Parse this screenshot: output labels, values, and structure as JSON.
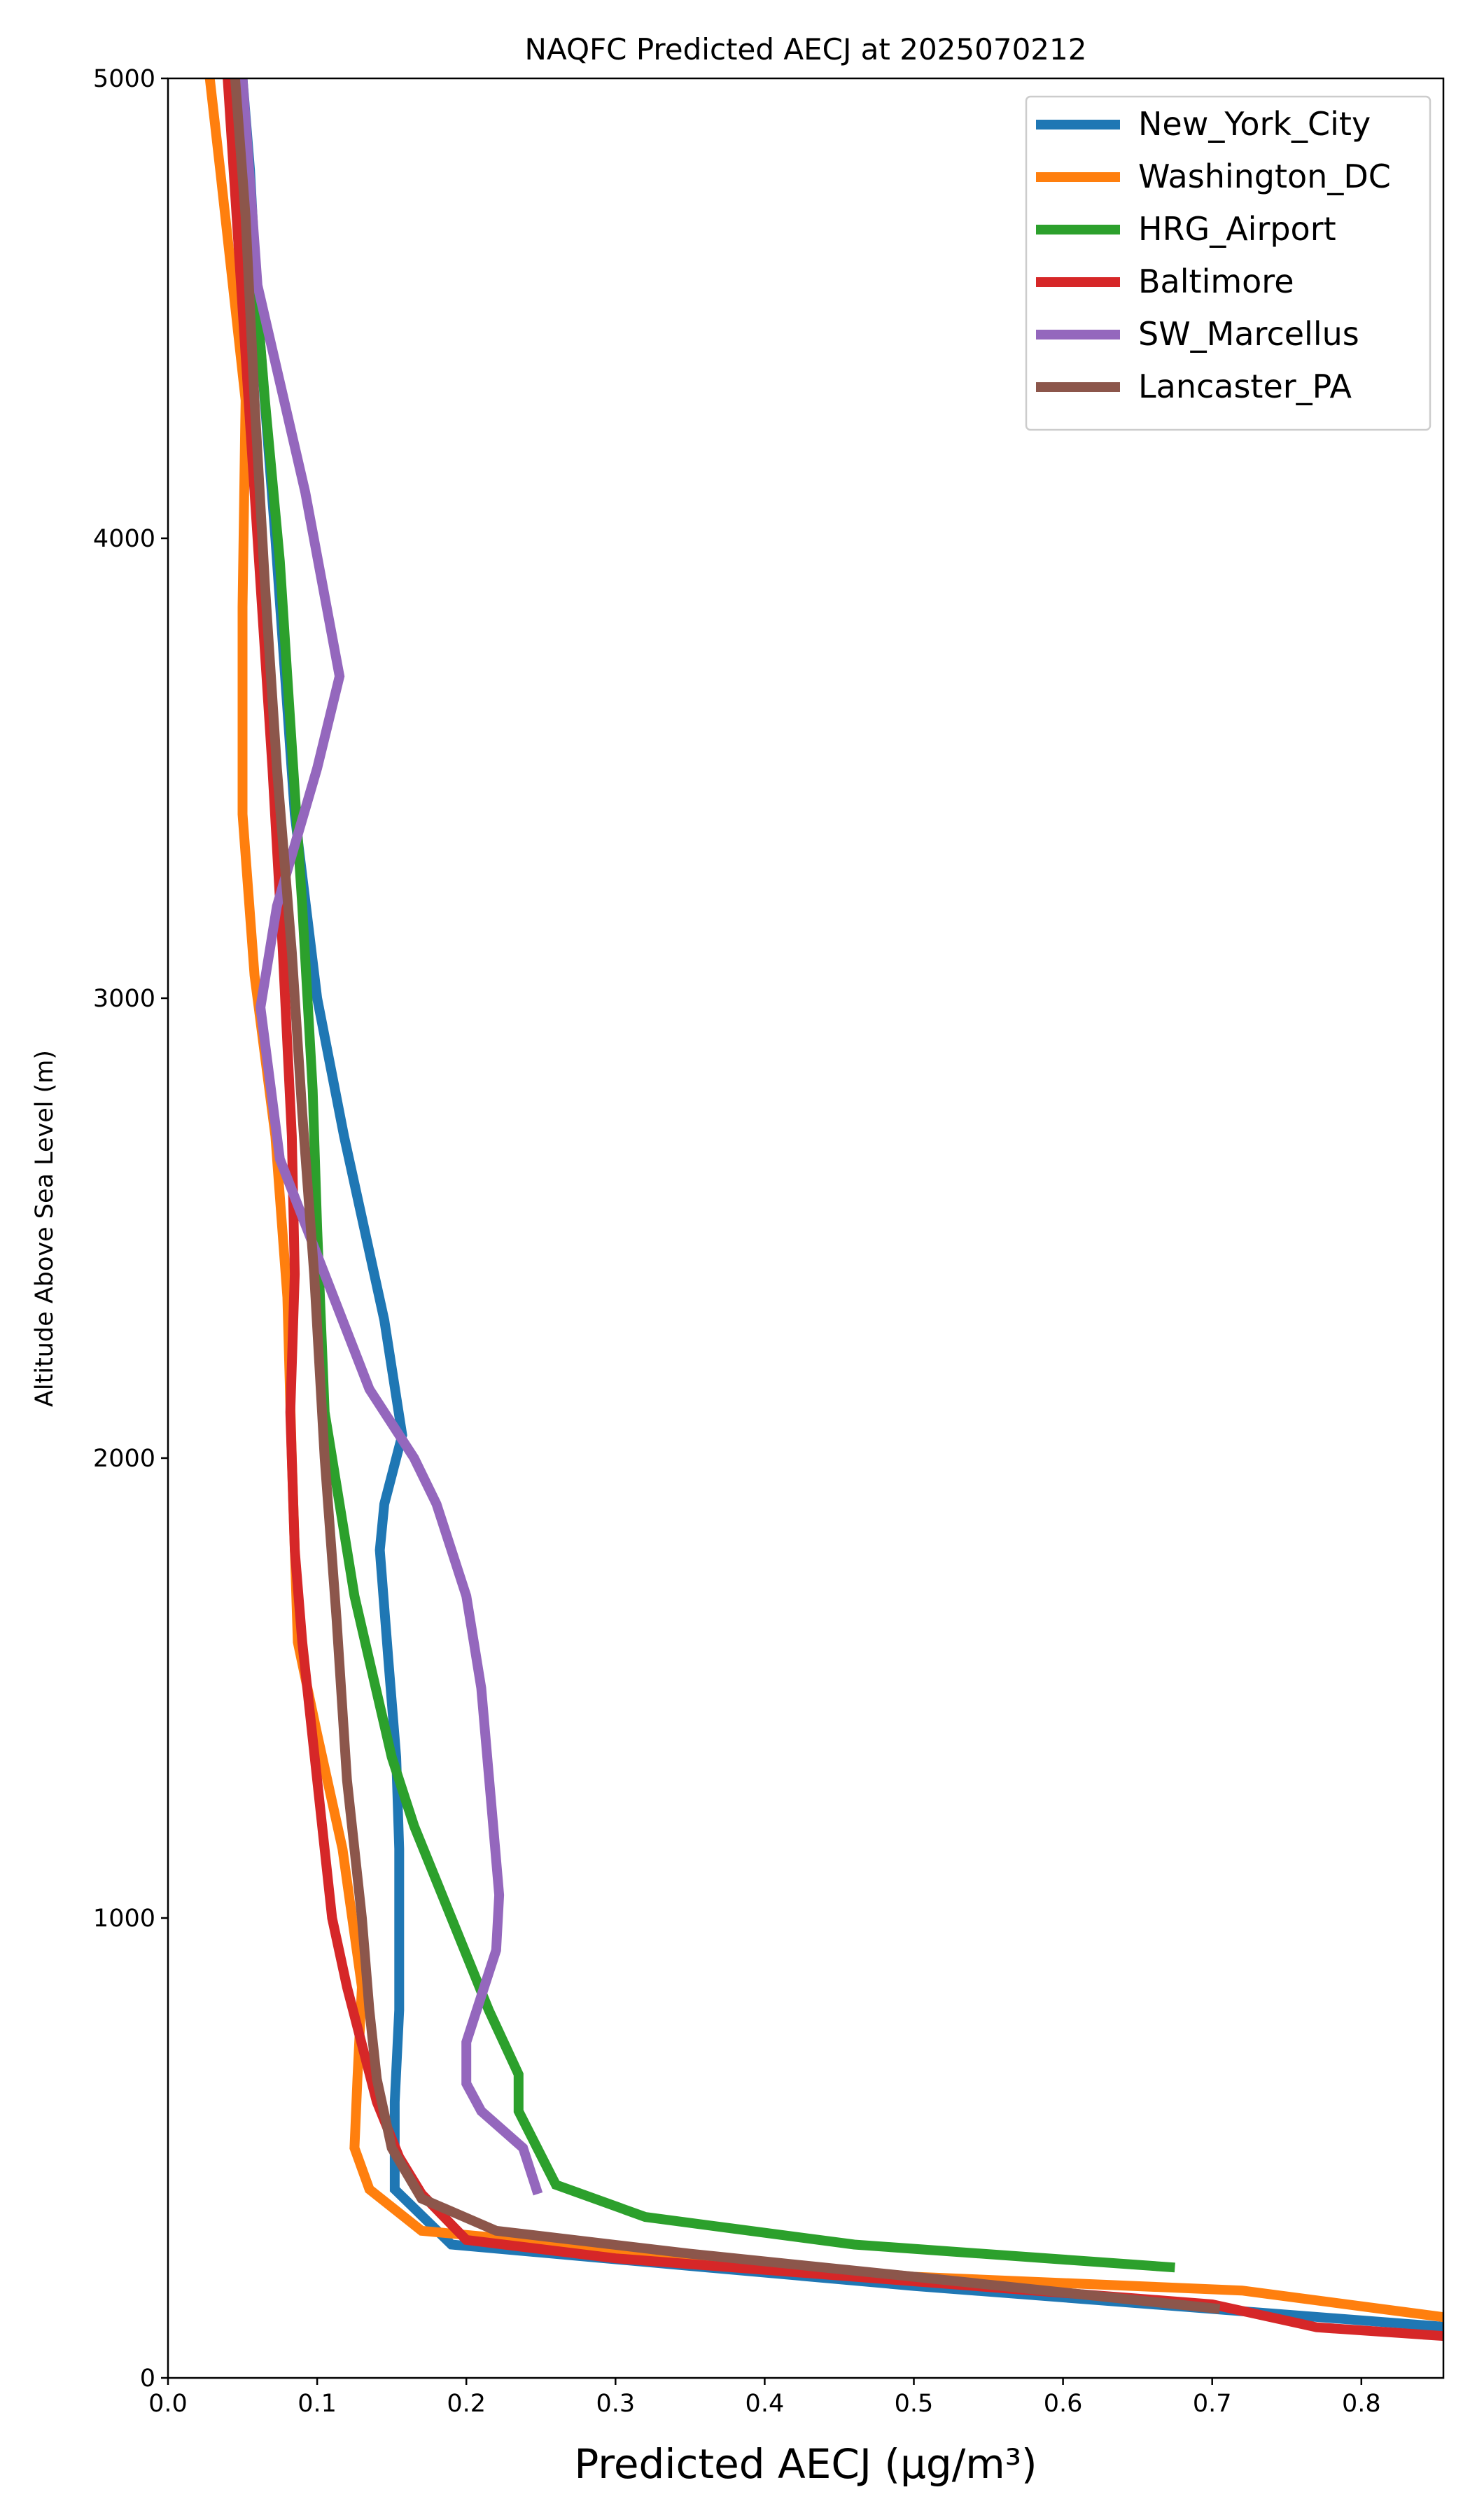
{
  "chart_data": {
    "type": "line",
    "title": "NAQFC Predicted AECJ at 2025070212",
    "xlabel": "Predicted AECJ (μg/m³)",
    "ylabel": "Altitude Above Sea Level (m)",
    "xlim": [
      0.0,
      0.855
    ],
    "ylim": [
      0,
      5000
    ],
    "xticks": [
      "0.0",
      "0.1",
      "0.2",
      "0.3",
      "0.4",
      "0.5",
      "0.6",
      "0.7",
      "0.8"
    ],
    "yticks": [
      "0",
      "1000",
      "2000",
      "3000",
      "4000",
      "5000"
    ],
    "grid": false,
    "legend_position": "top-right",
    "series": [
      {
        "name": "New_York_City",
        "color": "#1f77b4",
        "x": [
          0.86,
          0.5,
          0.19,
          0.152,
          0.152,
          0.155,
          0.155,
          0.155,
          0.153,
          0.148,
          0.142,
          0.145,
          0.157,
          0.145,
          0.118,
          0.1,
          0.085,
          0.072,
          0.06,
          0.055,
          0.05
        ],
        "y": [
          110,
          200,
          290,
          410,
          600,
          800,
          1000,
          1150,
          1350,
          1550,
          1800,
          1900,
          2050,
          2300,
          2700,
          3000,
          3400,
          4000,
          4500,
          4800,
          5000
        ]
      },
      {
        "name": "Washington_DC",
        "color": "#ff7f0e",
        "x": [
          0.86,
          0.72,
          0.5,
          0.17,
          0.135,
          0.125,
          0.127,
          0.13,
          0.117,
          0.1,
          0.087,
          0.083,
          0.08,
          0.072,
          0.058,
          0.05,
          0.05,
          0.052,
          0.035,
          0.028,
          0.03
        ],
        "y": [
          130,
          190,
          220,
          320,
          410,
          500,
          650,
          850,
          1150,
          1400,
          1600,
          2000,
          2350,
          2700,
          3050,
          3400,
          3850,
          4300,
          4800,
          5000,
          5000
        ]
      },
      {
        "name": "HRG_Airport",
        "color": "#2ca02c",
        "x": [
          0.675,
          0.46,
          0.32,
          0.26,
          0.235,
          0.235,
          0.215,
          0.19,
          0.165,
          0.15,
          0.125,
          0.105,
          0.1,
          0.097,
          0.09,
          0.082,
          0.075,
          0.065,
          0.055,
          0.048
        ],
        "y": [
          240,
          290,
          350,
          420,
          580,
          660,
          800,
          1000,
          1200,
          1350,
          1700,
          2100,
          2500,
          2800,
          3200,
          3600,
          3950,
          4300,
          4700,
          5000
        ]
      },
      {
        "name": "Baltimore",
        "color": "#d62728",
        "x": [
          0.86,
          0.77,
          0.7,
          0.5,
          0.3,
          0.2,
          0.17,
          0.155,
          0.14,
          0.12,
          0.11,
          0.1,
          0.09,
          0.085,
          0.082,
          0.085,
          0.083,
          0.077,
          0.07,
          0.06,
          0.05,
          0.04
        ],
        "y": [
          90,
          110,
          160,
          210,
          260,
          300,
          400,
          480,
          600,
          850,
          1000,
          1300,
          1600,
          1800,
          2100,
          2400,
          2700,
          3100,
          3500,
          4000,
          4500,
          5000
        ]
      },
      {
        "name": "SW_Marcellus",
        "color": "#9467bd",
        "x": [
          0.248,
          0.238,
          0.21,
          0.2,
          0.2,
          0.22,
          0.222,
          0.218,
          0.21,
          0.2,
          0.18,
          0.165,
          0.135,
          0.105,
          0.075,
          0.062,
          0.073,
          0.1,
          0.115,
          0.092,
          0.06,
          0.05
        ],
        "y": [
          400,
          500,
          580,
          640,
          730,
          930,
          1050,
          1200,
          1500,
          1700,
          1900,
          2000,
          2150,
          2400,
          2650,
          2980,
          3200,
          3500,
          3700,
          4100,
          4550,
          5000
        ]
      },
      {
        "name": "Lancaster_PA",
        "color": "#8c564b",
        "x": [
          0.705,
          0.5,
          0.35,
          0.22,
          0.17,
          0.15,
          0.14,
          0.135,
          0.13,
          0.12,
          0.113,
          0.105,
          0.098,
          0.09,
          0.083,
          0.073,
          0.065,
          0.058,
          0.052,
          0.045
        ],
        "y": [
          150,
          220,
          270,
          320,
          390,
          500,
          650,
          800,
          1000,
          1300,
          1650,
          2000,
          2400,
          2750,
          3100,
          3500,
          3900,
          4300,
          4700,
          5000
        ]
      }
    ]
  }
}
